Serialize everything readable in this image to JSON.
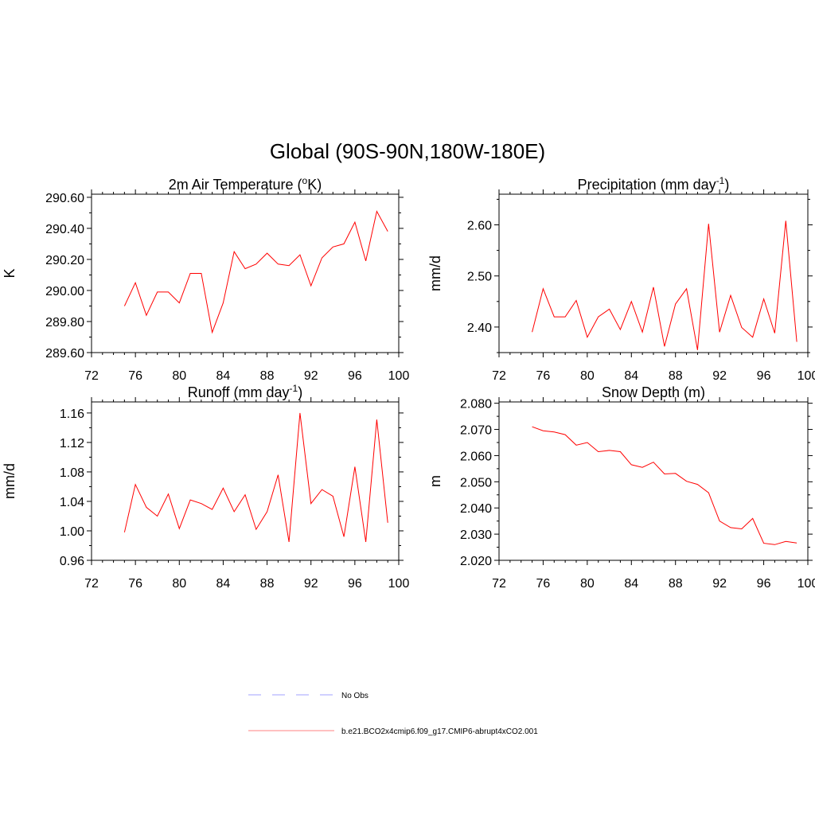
{
  "figure": {
    "title": "Global (90S-90N,180W-180E)"
  },
  "chart_data": [
    {
      "id": "temp",
      "type": "line",
      "title": "2m Air Temperature (",
      "title_sup": "o",
      "title_after": "K)",
      "xlabel": "",
      "ylabel": "K",
      "xlim": [
        72,
        100
      ],
      "ylim": [
        289.6,
        290.62
      ],
      "x_ticks": [
        72,
        76,
        80,
        84,
        88,
        92,
        96,
        100
      ],
      "y_ticks": [
        289.6,
        289.8,
        290.0,
        290.2,
        290.4,
        290.6
      ],
      "y_tick_labels": [
        "289.60",
        "289.80",
        "290.00",
        "290.20",
        "290.40",
        "290.60"
      ],
      "series": [
        {
          "name": "b.e21.BCO2x4cmip6.f09_g17.CMIP6-abrupt4xCO2.001",
          "color": "#ff0000",
          "x": [
            75,
            76,
            77,
            78,
            79,
            80,
            81,
            82,
            83,
            84,
            85,
            86,
            87,
            88,
            89,
            90,
            91,
            92,
            93,
            94,
            95,
            96,
            97,
            98,
            99
          ],
          "values": [
            289.9,
            290.05,
            289.84,
            289.99,
            289.99,
            289.92,
            290.11,
            290.11,
            289.73,
            289.92,
            290.25,
            290.14,
            290.17,
            290.24,
            290.17,
            290.16,
            290.23,
            290.03,
            290.21,
            290.28,
            290.3,
            290.44,
            290.19,
            290.51,
            290.38
          ]
        }
      ]
    },
    {
      "id": "precip",
      "type": "line",
      "title": "Precipitation (mm day",
      "title_sup": "-1",
      "title_after": ")",
      "xlabel": "",
      "ylabel": "mm/d",
      "xlim": [
        72,
        100
      ],
      "ylim": [
        2.35,
        2.66
      ],
      "x_ticks": [
        72,
        76,
        80,
        84,
        88,
        92,
        96,
        100
      ],
      "y_ticks": [
        2.4,
        2.5,
        2.6
      ],
      "y_tick_labels": [
        "2.40",
        "2.50",
        "2.60"
      ],
      "series": [
        {
          "name": "b.e21.BCO2x4cmip6.f09_g17.CMIP6-abrupt4xCO2.001",
          "color": "#ff0000",
          "x": [
            75,
            76,
            77,
            78,
            79,
            80,
            81,
            82,
            83,
            84,
            85,
            86,
            87,
            88,
            89,
            90,
            91,
            92,
            93,
            94,
            95,
            96,
            97,
            98,
            99
          ],
          "values": [
            2.39,
            2.475,
            2.42,
            2.42,
            2.452,
            2.38,
            2.42,
            2.435,
            2.395,
            2.45,
            2.39,
            2.478,
            2.362,
            2.445,
            2.475,
            2.355,
            2.602,
            2.39,
            2.462,
            2.399,
            2.38,
            2.455,
            2.388,
            2.608,
            2.371
          ]
        }
      ]
    },
    {
      "id": "runoff",
      "type": "line",
      "title": "Runoff (mm day",
      "title_sup": "-1",
      "title_after": ")",
      "xlabel": "",
      "ylabel": "mm/d",
      "xlim": [
        72,
        100
      ],
      "ylim": [
        0.96,
        1.175
      ],
      "x_ticks": [
        72,
        76,
        80,
        84,
        88,
        92,
        96,
        100
      ],
      "y_ticks": [
        0.96,
        1.0,
        1.04,
        1.08,
        1.12,
        1.16
      ],
      "y_tick_labels": [
        "0.96",
        "1.00",
        "1.04",
        "1.08",
        "1.12",
        "1.16"
      ],
      "series": [
        {
          "name": "b.e21.BCO2x4cmip6.f09_g17.CMIP6-abrupt4xCO2.001",
          "color": "#ff0000",
          "x": [
            75,
            76,
            77,
            78,
            79,
            80,
            81,
            82,
            83,
            84,
            85,
            86,
            87,
            88,
            89,
            90,
            91,
            92,
            93,
            94,
            95,
            96,
            97,
            98,
            99
          ],
          "values": [
            0.998,
            1.063,
            1.032,
            1.02,
            1.05,
            1.003,
            1.042,
            1.037,
            1.029,
            1.058,
            1.026,
            1.049,
            1.002,
            1.026,
            1.076,
            0.985,
            1.16,
            1.037,
            1.056,
            1.047,
            0.992,
            1.087,
            0.985,
            1.151,
            1.011
          ]
        }
      ]
    },
    {
      "id": "snow",
      "type": "line",
      "title": "Snow Depth (m)",
      "title_sup": "",
      "title_after": "",
      "xlabel": "",
      "ylabel": "m",
      "xlim": [
        72,
        100
      ],
      "ylim": [
        2.02,
        2.0805
      ],
      "x_ticks": [
        72,
        76,
        80,
        84,
        88,
        92,
        96,
        100
      ],
      "y_ticks": [
        2.02,
        2.03,
        2.04,
        2.05,
        2.06,
        2.07,
        2.08
      ],
      "y_tick_labels": [
        "2.020",
        "2.030",
        "2.040",
        "2.050",
        "2.060",
        "2.070",
        "2.080"
      ],
      "series": [
        {
          "name": "b.e21.BCO2x4cmip6.f09_g17.CMIP6-abrupt4xCO2.001",
          "color": "#ff0000",
          "x": [
            75,
            76,
            77,
            78,
            79,
            80,
            81,
            82,
            83,
            84,
            85,
            86,
            87,
            88,
            89,
            90,
            91,
            92,
            93,
            94,
            95,
            96,
            97,
            98,
            99
          ],
          "values": [
            2.071,
            2.0695,
            2.069,
            2.068,
            2.064,
            2.065,
            2.0615,
            2.062,
            2.0615,
            2.0565,
            2.0555,
            2.0575,
            2.053,
            2.0532,
            2.0502,
            2.049,
            2.0458,
            2.035,
            2.0325,
            2.032,
            2.036,
            2.0265,
            2.026,
            2.0272,
            2.0266
          ]
        }
      ]
    }
  ],
  "legend": [
    {
      "label": "No Obs",
      "color": "#a0a0ff",
      "style": "dashed"
    },
    {
      "label": "b.e21.BCO2x4cmip6.f09_g17.CMIP6-abrupt4xCO2.001",
      "color": "#ff8080",
      "style": "solid"
    }
  ]
}
